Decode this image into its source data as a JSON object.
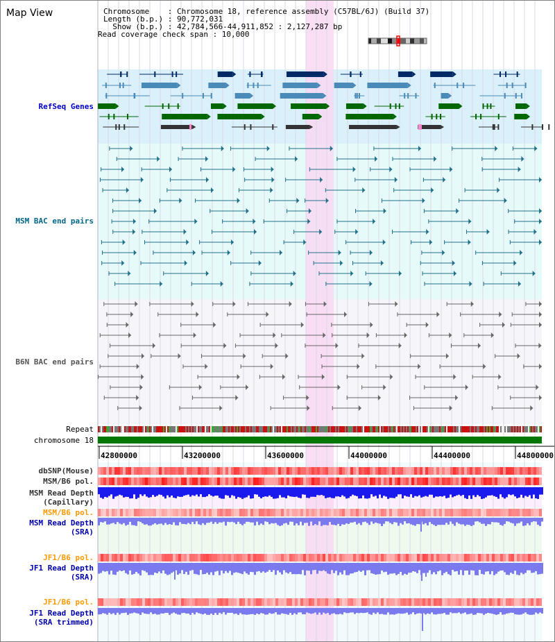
{
  "page": {
    "title": "Map View"
  },
  "info": {
    "line1": "Chromosome    : Chromosome 18, reference assembly (C57BL/6J) (Build 37)",
    "line2": "Length (b.p.) : 90,772,031",
    "line3": "  Show (b.p.) : 42,784,566-44,911,852 : 2,127,287 bp",
    "line4": "Read coverage check span : 10,000"
  },
  "tracks": {
    "refseq": {
      "label": "RefSeq Genes",
      "color": "#0000cc"
    },
    "msm_bac": {
      "label": "MSM BAC end pairs",
      "color": "#006688"
    },
    "b6n_bac": {
      "label": "B6N BAC end pairs",
      "color": "#555555"
    },
    "repeat": {
      "label": "Repeat"
    },
    "chromosome": {
      "label": "chromosome 18",
      "color": "#007700"
    },
    "dbsnp": {
      "label": "dbSNP(Mouse)",
      "color": "#333333"
    },
    "msm_pol_cap": {
      "label": "MSM/B6 pol.",
      "color": "#333333"
    },
    "msm_depth_cap": {
      "label1": "MSM Read Depth",
      "label2": "(Capillary)",
      "color": "#333333"
    },
    "msm_pol_sra": {
      "label": "MSM/B6 pol.",
      "color": "#ff9900"
    },
    "msm_depth_sra": {
      "label1": "MSM Read Depth",
      "label2": "(SRA)",
      "color": "#0000aa"
    },
    "jf1_pol": {
      "label": "JF1/B6 pol.",
      "color": "#ff9900"
    },
    "jf1_depth": {
      "label1": "JF1 Read Depth",
      "label2": "(SRA)",
      "color": "#0000aa"
    },
    "jf1_pol2": {
      "label": "JF1/B6 pol.",
      "color": "#ff9900"
    },
    "jf1_depth_trim": {
      "label1": "JF1 Read Depth",
      "label2": "(SRA trimmed)",
      "color": "#0000aa"
    }
  },
  "axis": {
    "ticks": [
      "42800000",
      "43200000",
      "43600000",
      "44000000",
      "44400000",
      "44800000"
    ]
  },
  "colors": {
    "refseq_bg": "#daf0fa",
    "msm_bg": "#e6fafa",
    "b6n_bg": "#f5f5fa",
    "highlight": "#f8d8f2",
    "gene_dark": "#002a66",
    "gene_mid": "#4a8ab8",
    "gene_green": "#006600",
    "chromosome_bar": "#007700",
    "depth_blue": "#1a1aee",
    "depth_light": "#7a7aee"
  }
}
